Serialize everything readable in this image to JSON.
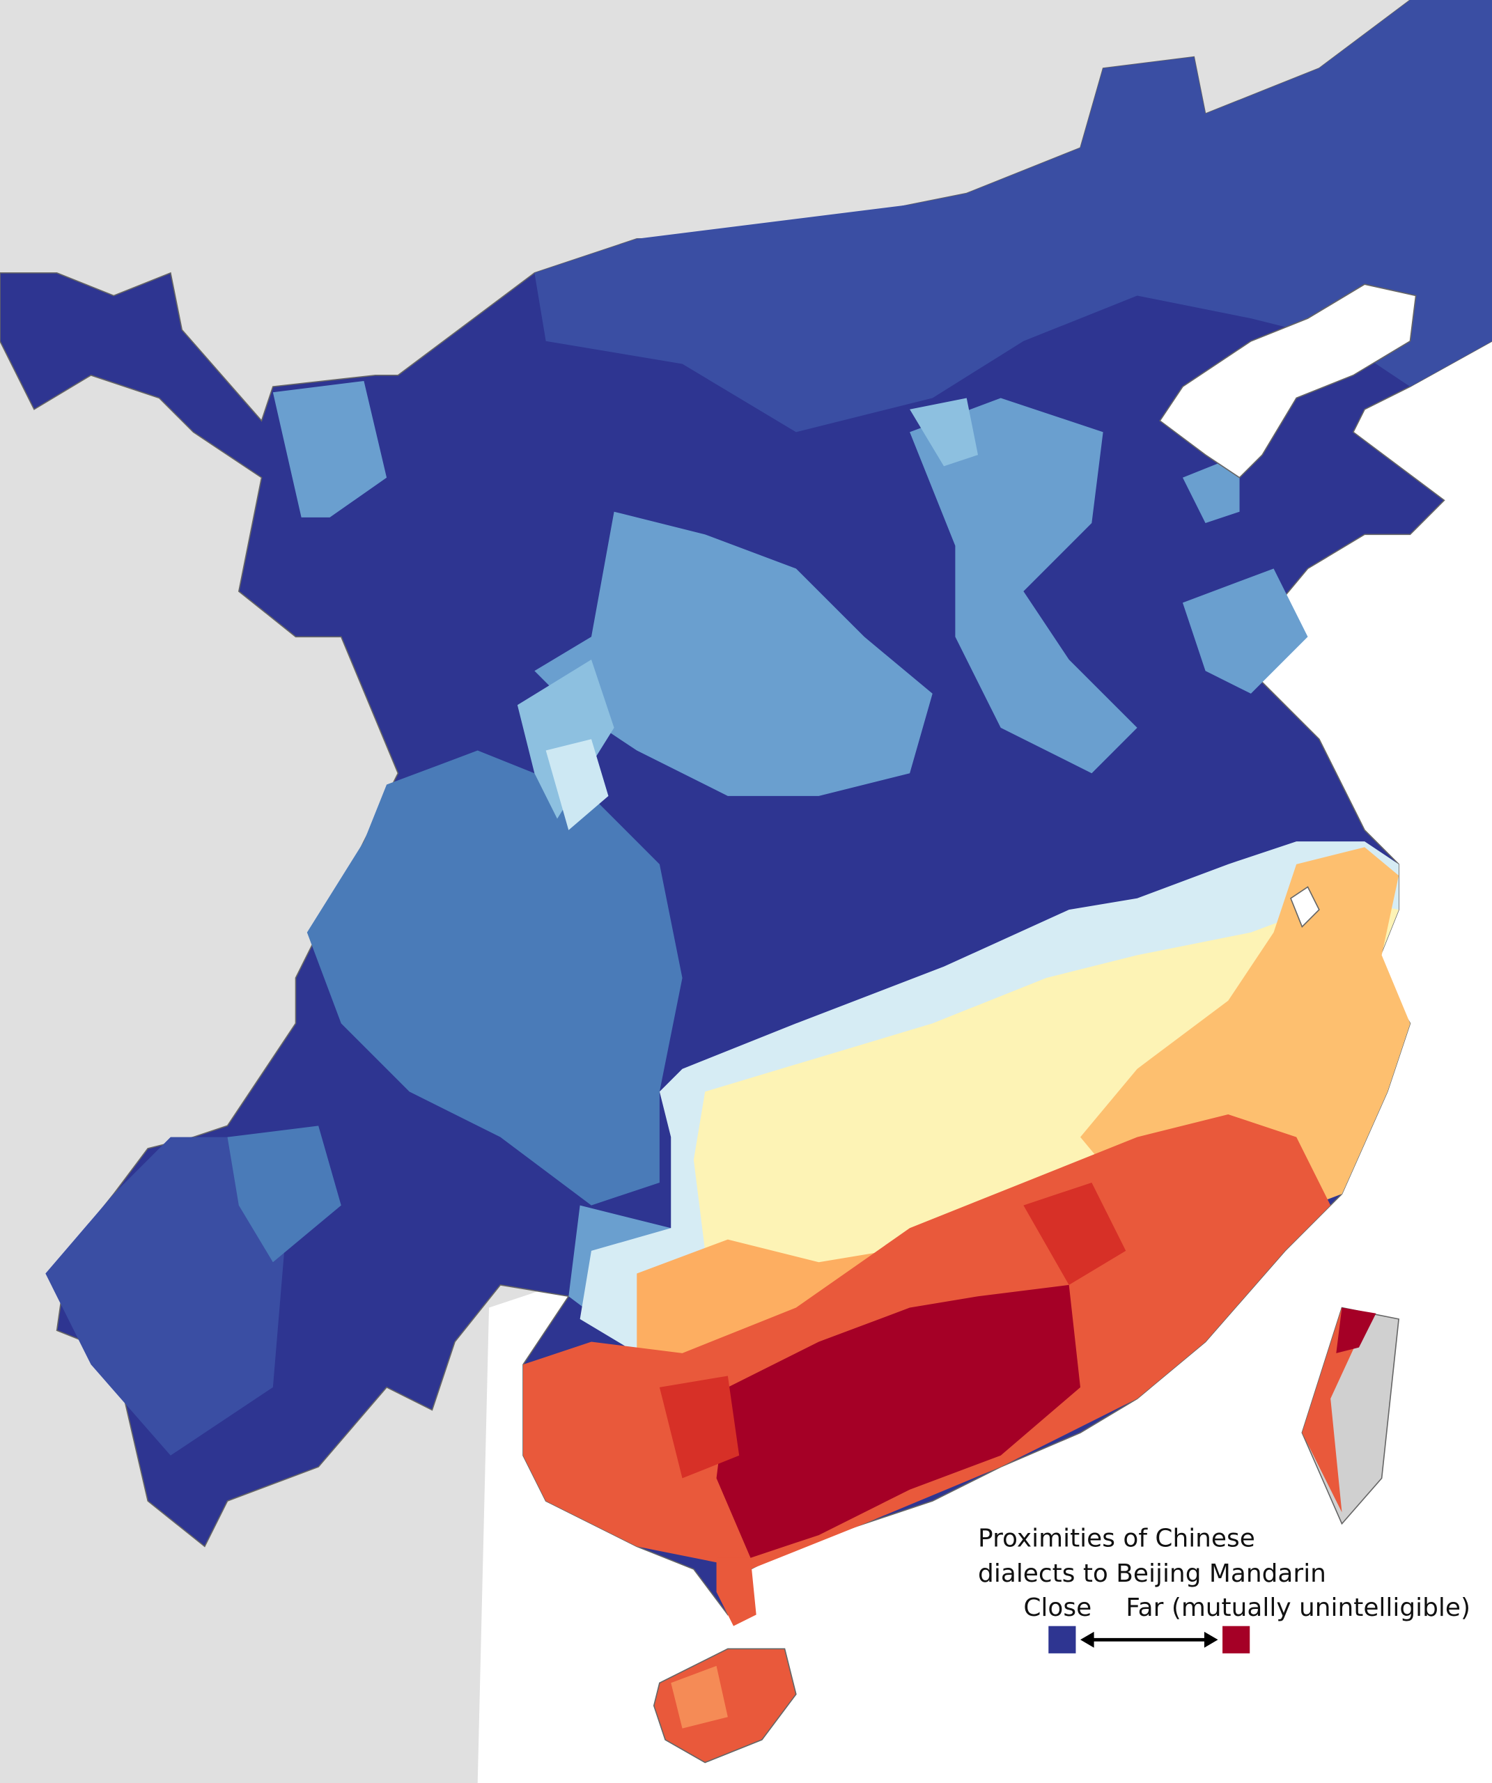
{
  "legend": {
    "title_lines": [
      "Proximities of Chinese",
      "dialects to Beijing Mandarin"
    ],
    "close": "Close",
    "far": "Far (mutually unintelligible)"
  }
}
